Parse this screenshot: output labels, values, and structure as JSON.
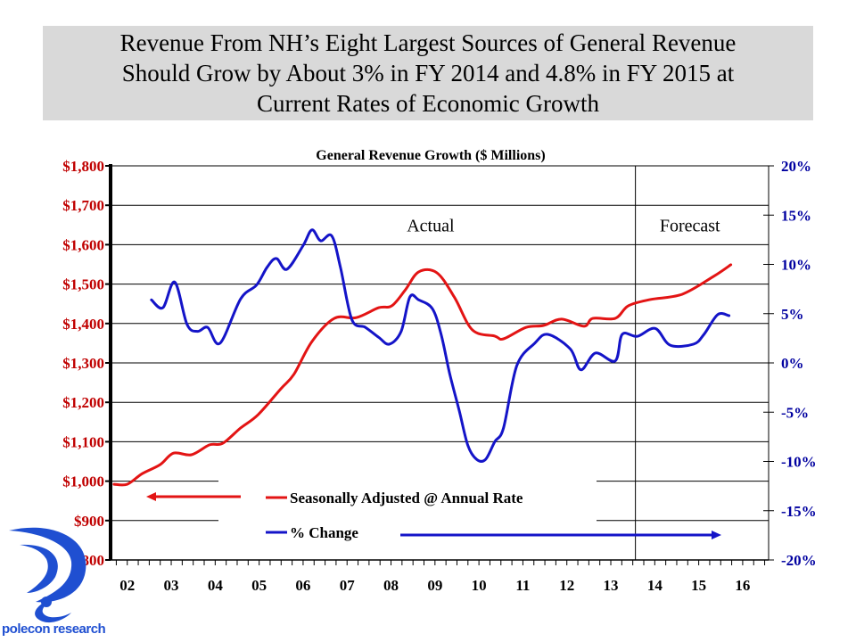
{
  "slide": {
    "title_lines": [
      "Revenue From NH’s Eight Largest Sources of General Revenue",
      "Should Grow by About 3% in FY 2014 and 4.8% in FY 2015 at",
      "Current Rates of Economic Growth"
    ],
    "logo_text": "polecon research",
    "colors": {
      "title_bg": "#d9d9d9",
      "revenue": "#e31414",
      "pct_change": "#1414c8",
      "left_axis": "#c00000",
      "right_axis": "#0000a0",
      "logo": "#1f4fd1"
    }
  },
  "chart_data": {
    "type": "line",
    "title": "General Revenue Growth ($ Millions)",
    "xlabel": "",
    "ylabel": "",
    "x_tick_labels": [
      "02",
      "03",
      "04",
      "05",
      "06",
      "07",
      "08",
      "09",
      "10",
      "11",
      "12",
      "13",
      "14",
      "15",
      "16"
    ],
    "x_tick_values": [
      2002,
      2003,
      2004,
      2005,
      2006,
      2007,
      2008,
      2009,
      2010,
      2011,
      2012,
      2013,
      2014,
      2015,
      2016
    ],
    "xlim": [
      2001.62,
      2016.59
    ],
    "y_left": {
      "lim": [
        800,
        1800
      ],
      "ticks": [
        800,
        900,
        1000,
        1100,
        1200,
        1300,
        1400,
        1500,
        1600,
        1700,
        1800
      ],
      "tick_labels": [
        "$800",
        "$900",
        "$1,000",
        "$1,100",
        "$1,200",
        "$1,300",
        "$1,400",
        "$1,500",
        "$1,600",
        "$1,700",
        "$1,800"
      ]
    },
    "y_right": {
      "lim": [
        -20,
        20
      ],
      "ticks": [
        -20,
        -15,
        -10,
        -5,
        0,
        5,
        10,
        15,
        20
      ],
      "tick_labels": [
        "-20%",
        "-15%",
        "-10%",
        "-5%",
        "0%",
        "5%",
        "10%",
        "15%",
        "20%"
      ]
    },
    "grid": true,
    "annotations": [
      {
        "text": "Actual",
        "x": 2008.9,
        "y_pct": 14
      },
      {
        "text": "Forecast",
        "x": 2014.8,
        "y_pct": 14
      }
    ],
    "forecast_divider_x": 2013.56,
    "legend": {
      "placement": "bottom-center",
      "entries": [
        "Seasonally Adjusted @ Annual Rate",
        "% Change"
      ]
    },
    "series": [
      {
        "name": "Seasonally Adjusted @ Annual Rate",
        "axis": "left",
        "color": "#e31414",
        "x": [
          2001.7,
          2002.0,
          2002.34,
          2002.75,
          2003.05,
          2003.46,
          2003.87,
          2004.17,
          2004.58,
          2004.98,
          2005.49,
          2005.79,
          2006.2,
          2006.71,
          2007.21,
          2007.72,
          2008.02,
          2008.33,
          2008.63,
          2009.04,
          2009.44,
          2009.85,
          2010.36,
          2010.56,
          2011.07,
          2011.47,
          2011.88,
          2012.39,
          2012.59,
          2013.1,
          2013.4,
          2013.91,
          2014.62,
          2015.33,
          2015.73
        ],
        "values": [
          992,
          992,
          1019,
          1042,
          1071,
          1067,
          1092,
          1096,
          1135,
          1169,
          1234,
          1271,
          1354,
          1413,
          1415,
          1440,
          1445,
          1486,
          1531,
          1529,
          1467,
          1384,
          1368,
          1361,
          1390,
          1395,
          1411,
          1393,
          1413,
          1413,
          1445,
          1461,
          1474,
          1519,
          1549
        ]
      },
      {
        "name": "% Change",
        "axis": "right",
        "color": "#1414c8",
        "x": [
          2002.55,
          2002.81,
          2003.08,
          2003.36,
          2003.6,
          2003.83,
          2004.11,
          2004.58,
          2004.94,
          2005.18,
          2005.39,
          2005.63,
          2006.0,
          2006.2,
          2006.4,
          2006.65,
          2006.85,
          2007.11,
          2007.42,
          2007.72,
          2007.96,
          2008.23,
          2008.43,
          2008.63,
          2008.94,
          2009.14,
          2009.34,
          2009.55,
          2009.75,
          2009.95,
          2010.15,
          2010.36,
          2010.56,
          2010.86,
          2011.27,
          2011.57,
          2012.08,
          2012.32,
          2012.65,
          2013.1,
          2013.26,
          2013.6,
          2014.01,
          2014.35,
          2014.88,
          2015.12,
          2015.43,
          2015.69
        ],
        "values": [
          6.4,
          5.6,
          8.2,
          3.9,
          3.2,
          3.6,
          2.0,
          6.5,
          7.9,
          9.7,
          10.6,
          9.5,
          11.9,
          13.5,
          12.4,
          12.9,
          9.7,
          4.4,
          3.6,
          2.6,
          1.9,
          3.2,
          6.7,
          6.4,
          5.5,
          2.9,
          -1.2,
          -4.8,
          -8.4,
          -9.8,
          -9.8,
          -8.0,
          -6.6,
          -0.3,
          2.0,
          2.9,
          1.4,
          -0.7,
          1.0,
          0.2,
          2.9,
          2.7,
          3.5,
          1.8,
          1.9,
          2.9,
          4.9,
          4.8
        ]
      }
    ]
  }
}
